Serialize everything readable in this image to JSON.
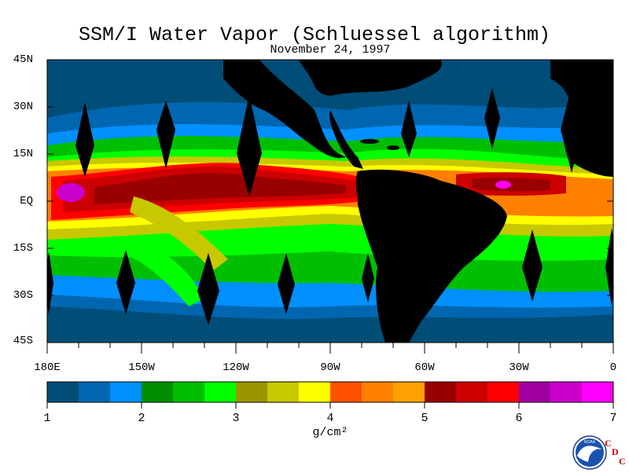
{
  "title": "SSM/I Water Vapor (Schluessel algorithm)",
  "date": "November 24, 1997",
  "lat_labels": [
    "45N",
    "30N",
    "15N",
    "EQ",
    "15S",
    "30S",
    "45S"
  ],
  "lon_labels": [
    "180E",
    "150W",
    "120W",
    "90W",
    "60W",
    "30W",
    "0"
  ],
  "colorbar": {
    "colors": [
      "#004d78",
      "#0066b0",
      "#0090ff",
      "#008f00",
      "#00bf00",
      "#00ff00",
      "#9c9400",
      "#c8c800",
      "#ffff00",
      "#ff5000",
      "#ff8000",
      "#ffa000",
      "#990000",
      "#cc0000",
      "#ff0000",
      "#a000a0",
      "#cc00cc",
      "#ff00ff"
    ],
    "tick_labels": [
      "1",
      "2",
      "3",
      "4",
      "5",
      "6",
      "7"
    ],
    "unit": "g/cm²"
  },
  "logo": {
    "emblem_text": "NOAA",
    "icon": "noaa-logo-icon",
    "letters": [
      "C",
      "D",
      "C"
    ]
  }
}
